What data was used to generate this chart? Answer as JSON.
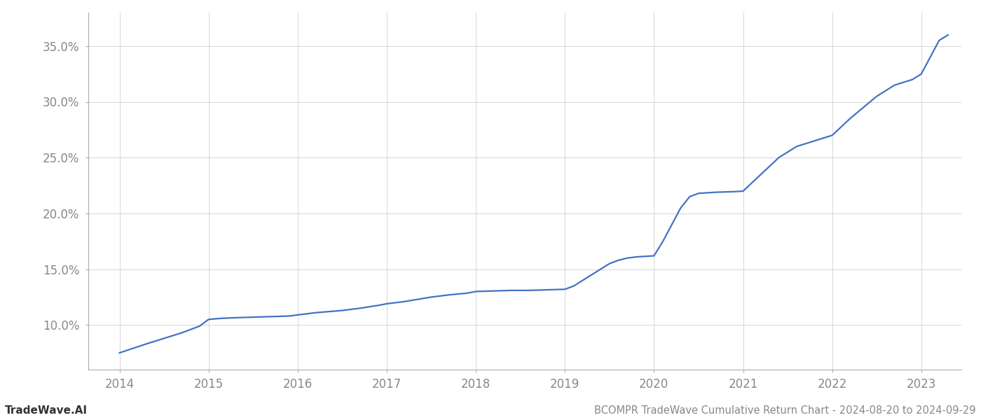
{
  "title": "BCOMPR TradeWave Cumulative Return Chart - 2024-08-20 to 2024-09-29",
  "watermark": "TradeWave.AI",
  "line_color": "#4472c4",
  "background_color": "#ffffff",
  "grid_color": "#d0d0d0",
  "x_values": [
    2014.0,
    2014.15,
    2014.3,
    2014.5,
    2014.7,
    2014.9,
    2015.0,
    2015.15,
    2015.3,
    2015.5,
    2015.7,
    2015.9,
    2016.0,
    2016.2,
    2016.5,
    2016.7,
    2016.9,
    2017.0,
    2017.2,
    2017.5,
    2017.7,
    2017.9,
    2018.0,
    2018.2,
    2018.4,
    2018.6,
    2018.8,
    2019.0,
    2019.1,
    2019.2,
    2019.3,
    2019.4,
    2019.5,
    2019.6,
    2019.7,
    2019.8,
    2019.9,
    2020.0,
    2020.1,
    2020.2,
    2020.3,
    2020.4,
    2020.5,
    2020.7,
    2020.9,
    2021.0,
    2021.2,
    2021.4,
    2021.6,
    2021.8,
    2022.0,
    2022.2,
    2022.5,
    2022.7,
    2022.9,
    2023.0,
    2023.1,
    2023.2,
    2023.3
  ],
  "y_values": [
    7.5,
    7.9,
    8.3,
    8.8,
    9.3,
    9.9,
    10.5,
    10.6,
    10.65,
    10.7,
    10.75,
    10.8,
    10.9,
    11.1,
    11.3,
    11.5,
    11.75,
    11.9,
    12.1,
    12.5,
    12.7,
    12.85,
    13.0,
    13.05,
    13.1,
    13.1,
    13.15,
    13.2,
    13.5,
    14.0,
    14.5,
    15.0,
    15.5,
    15.8,
    16.0,
    16.1,
    16.15,
    16.2,
    17.5,
    19.0,
    20.5,
    21.5,
    21.8,
    21.9,
    21.95,
    22.0,
    23.5,
    25.0,
    26.0,
    26.5,
    27.0,
    28.5,
    30.5,
    31.5,
    32.0,
    32.5,
    34.0,
    35.5,
    36.0
  ],
  "ylim": [
    6.0,
    38.0
  ],
  "xlim": [
    2013.65,
    2023.45
  ],
  "yticks": [
    10.0,
    15.0,
    20.0,
    25.0,
    30.0,
    35.0
  ],
  "xticks": [
    2014,
    2015,
    2016,
    2017,
    2018,
    2019,
    2020,
    2021,
    2022,
    2023
  ],
  "title_fontsize": 10.5,
  "watermark_fontsize": 11,
  "tick_fontsize": 12,
  "line_width": 1.6
}
